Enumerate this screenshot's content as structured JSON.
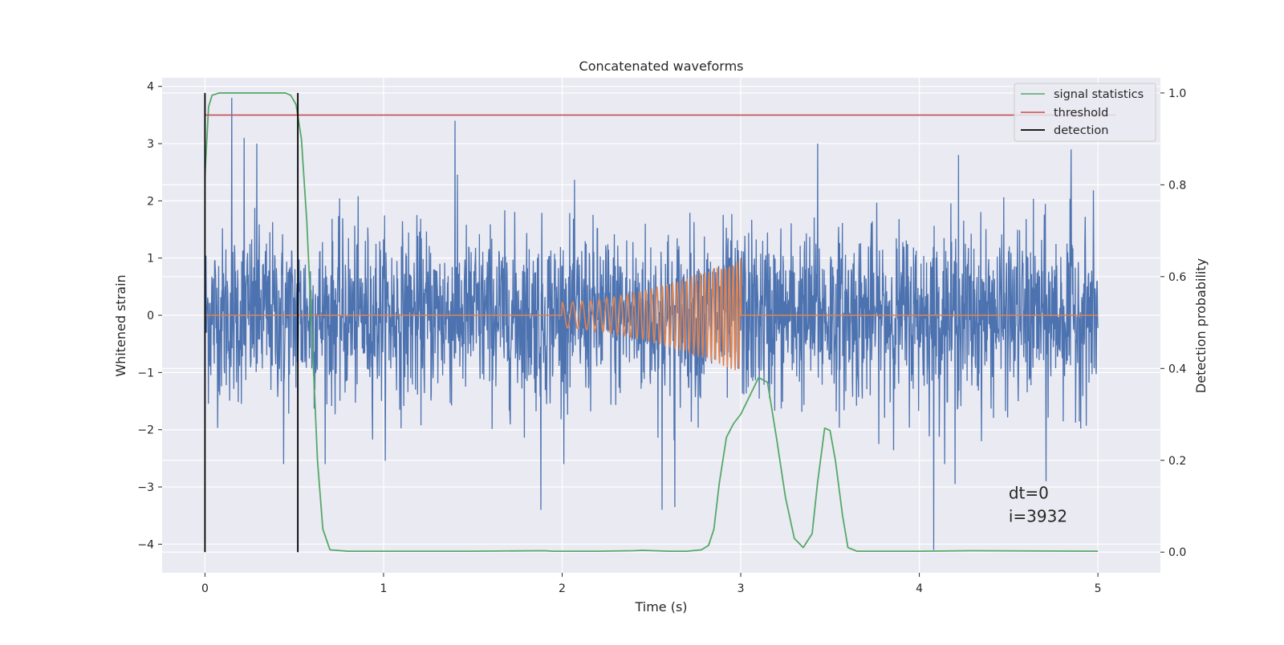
{
  "chart_data": {
    "type": "line",
    "title": "Concatenated waveforms",
    "xlabel": "Time (s)",
    "ylabel_left": "Whitened strain",
    "ylabel_right": "Detection probability",
    "xlim": [
      -0.24,
      5.35
    ],
    "ylim_left": [
      -4.5,
      4.15
    ],
    "ylim_right": [
      -0.045,
      1.033
    ],
    "x_ticks": [
      0,
      1,
      2,
      3,
      4,
      5
    ],
    "y_ticks_left": [
      -4,
      -3,
      -2,
      -1,
      0,
      1,
      2,
      3,
      4
    ],
    "y_ticks_right": [
      0.0,
      0.2,
      0.4,
      0.6,
      0.8,
      1.0
    ],
    "x_tick_labels": [
      "0",
      "1",
      "2",
      "3",
      "4",
      "5"
    ],
    "y_tick_labels_left": [
      "−4",
      "−3",
      "−2",
      "−1",
      "0",
      "1",
      "2",
      "3",
      "4"
    ],
    "y_tick_labels_right": [
      "0.0",
      "0.2",
      "0.4",
      "0.6",
      "0.8",
      "1.0"
    ],
    "grid": true,
    "legend_position": "top-right",
    "series": [
      {
        "name": "",
        "axis": "left",
        "color": "#4c72b0",
        "kind": "noise",
        "x_range": [
          0,
          5
        ],
        "y_typical_range": [
          -2.0,
          2.5
        ],
        "spikes": [
          {
            "x": 0.15,
            "y": 3.8
          },
          {
            "x": 0.22,
            "y": 3.1
          },
          {
            "x": 0.29,
            "y": 3.0
          },
          {
            "x": 1.4,
            "y": 3.4
          },
          {
            "x": 1.88,
            "y": -3.4
          },
          {
            "x": 2.56,
            "y": -3.4
          },
          {
            "x": 2.63,
            "y": -3.35
          },
          {
            "x": 4.08,
            "y": -4.1
          },
          {
            "x": 3.43,
            "y": 3.0
          },
          {
            "x": 4.22,
            "y": 2.8
          },
          {
            "x": 4.85,
            "y": 2.9
          },
          {
            "x": 4.71,
            "y": -2.9
          },
          {
            "x": 4.2,
            "y": -2.95
          },
          {
            "x": 0.44,
            "y": -2.6
          }
        ]
      },
      {
        "name": "",
        "axis": "left",
        "color": "#dd8452",
        "kind": "chirp",
        "x_range": [
          0,
          5
        ],
        "chirp_start": 2.0,
        "chirp_end": 3.0,
        "amplitude_start": 0.22,
        "amplitude_end": 1.0
      },
      {
        "name": "signal statistics",
        "axis": "right",
        "color": "#55a868",
        "x": [
          0,
          0.02,
          0.04,
          0.08,
          0.12,
          0.3,
          0.45,
          0.48,
          0.51,
          0.54,
          0.57,
          0.6,
          0.63,
          0.66,
          0.7,
          0.8,
          1.0,
          1.5,
          1.9,
          1.95,
          2.2,
          2.4,
          2.45,
          2.6,
          2.7,
          2.78,
          2.82,
          2.85,
          2.88,
          2.92,
          2.96,
          3.0,
          3.05,
          3.1,
          3.15,
          3.2,
          3.25,
          3.3,
          3.35,
          3.4,
          3.43,
          3.47,
          3.5,
          3.53,
          3.57,
          3.6,
          3.65,
          4.0,
          4.3,
          5.0
        ],
        "y": [
          0.82,
          0.97,
          0.995,
          1.0,
          1.0,
          1.0,
          1.0,
          0.995,
          0.975,
          0.9,
          0.72,
          0.47,
          0.2,
          0.05,
          0.005,
          0.002,
          0.002,
          0.002,
          0.003,
          0.002,
          0.002,
          0.003,
          0.004,
          0.002,
          0.002,
          0.005,
          0.015,
          0.05,
          0.15,
          0.25,
          0.28,
          0.3,
          0.34,
          0.38,
          0.37,
          0.25,
          0.12,
          0.03,
          0.01,
          0.04,
          0.15,
          0.27,
          0.265,
          0.2,
          0.08,
          0.01,
          0.002,
          0.002,
          0.003,
          0.002
        ]
      },
      {
        "name": "threshold",
        "axis": "right",
        "color": "#c44e52",
        "x": [
          0,
          5.1
        ],
        "y": [
          0.952,
          0.952
        ]
      },
      {
        "name": "detection",
        "axis": "right",
        "color": "#000000",
        "kind": "vlines",
        "x": [
          0,
          0.52
        ],
        "y_bottom": 0,
        "y_top": 1.0
      }
    ],
    "annotation": {
      "line1": "dt=0",
      "line2": "i=3932",
      "x": 4.5,
      "y": -3.2
    }
  }
}
